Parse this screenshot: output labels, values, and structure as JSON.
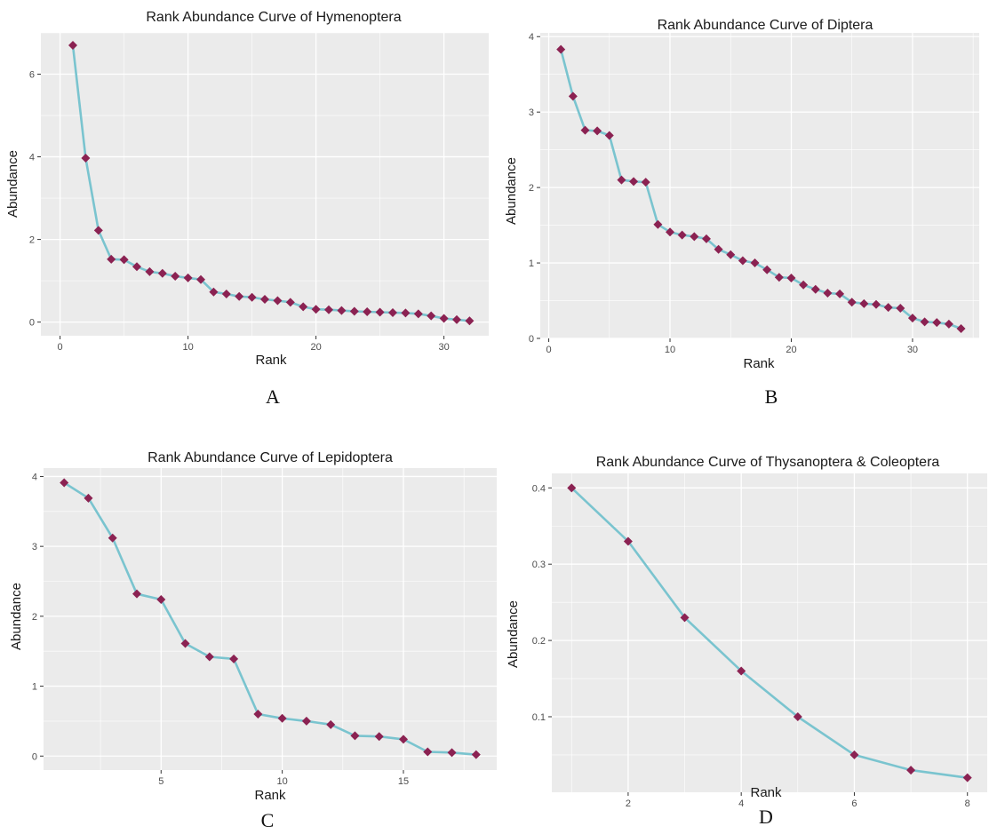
{
  "chart_data": [
    {
      "id": "A",
      "panel_label": "A",
      "type": "line",
      "title": "Rank Abundance Curve of Hymenoptera",
      "xlabel": "Rank",
      "ylabel": "Abundance",
      "xlim": [
        -1.5,
        33.5
      ],
      "ylim": [
        -0.33,
        7.0
      ],
      "xticks": [
        0,
        10,
        20,
        30
      ],
      "yticks": [
        0,
        2,
        4,
        6
      ],
      "grid": true,
      "line_color": "#7ac4cf",
      "marker_color": "#8b2252",
      "marker": "diamond",
      "x": [
        1,
        2,
        3,
        4,
        5,
        6,
        7,
        8,
        9,
        10,
        11,
        12,
        13,
        14,
        15,
        16,
        17,
        18,
        19,
        20,
        21,
        22,
        23,
        24,
        25,
        26,
        27,
        28,
        29,
        30,
        31,
        32
      ],
      "y": [
        6.7,
        3.97,
        2.22,
        1.52,
        1.51,
        1.34,
        1.22,
        1.18,
        1.11,
        1.07,
        1.03,
        0.73,
        0.68,
        0.62,
        0.6,
        0.55,
        0.52,
        0.48,
        0.37,
        0.31,
        0.3,
        0.28,
        0.26,
        0.25,
        0.24,
        0.23,
        0.22,
        0.2,
        0.15,
        0.09,
        0.06,
        0.03
      ]
    },
    {
      "id": "B",
      "panel_label": "B",
      "type": "line",
      "title": "Rank Abundance Curve of Diptera",
      "xlabel": "Rank",
      "ylabel": "Abundance",
      "xlim": [
        -0.7,
        35.5
      ],
      "ylim": [
        0,
        4.05
      ],
      "xticks": [
        0,
        10,
        20,
        30
      ],
      "yticks": [
        0,
        1,
        2,
        3,
        4
      ],
      "grid": true,
      "line_color": "#7ac4cf",
      "marker_color": "#8b2252",
      "marker": "diamond",
      "x": [
        1,
        2,
        3,
        4,
        5,
        6,
        7,
        8,
        9,
        10,
        11,
        12,
        13,
        14,
        15,
        16,
        17,
        18,
        19,
        20,
        21,
        22,
        23,
        24,
        25,
        26,
        27,
        28,
        29,
        30,
        31,
        32,
        33,
        34
      ],
      "y": [
        3.83,
        3.21,
        2.76,
        2.75,
        2.69,
        2.1,
        2.08,
        2.07,
        1.51,
        1.41,
        1.37,
        1.35,
        1.32,
        1.18,
        1.11,
        1.03,
        1.0,
        0.91,
        0.81,
        0.8,
        0.71,
        0.65,
        0.6,
        0.59,
        0.48,
        0.46,
        0.45,
        0.41,
        0.4,
        0.27,
        0.22,
        0.21,
        0.19,
        0.13
      ]
    },
    {
      "id": "C",
      "panel_label": "C",
      "type": "line",
      "title": "Rank Abundance Curve of Lepidoptera",
      "xlabel": "Rank",
      "ylabel": "Abundance",
      "xlim": [
        0.15,
        18.85
      ],
      "ylim": [
        -0.2,
        4.12
      ],
      "xticks": [
        5,
        10,
        15
      ],
      "yticks": [
        0,
        1,
        2,
        3,
        4
      ],
      "grid": true,
      "line_color": "#7ac4cf",
      "marker_color": "#8b2252",
      "marker": "diamond",
      "x": [
        1,
        2,
        3,
        4,
        5,
        6,
        7,
        8,
        9,
        10,
        11,
        12,
        13,
        14,
        15,
        16,
        17,
        18
      ],
      "y": [
        3.91,
        3.69,
        3.12,
        2.32,
        2.24,
        1.61,
        1.42,
        1.39,
        0.6,
        0.54,
        0.5,
        0.45,
        0.29,
        0.28,
        0.24,
        0.06,
        0.05,
        0.02
      ]
    },
    {
      "id": "D",
      "panel_label": "D",
      "type": "line",
      "title": "Rank Abundance Curve of Thysanoptera & Coleoptera",
      "xlabel": "Rank",
      "ylabel": "Abundance",
      "xlim": [
        0.65,
        8.35
      ],
      "ylim": [
        0.001,
        0.419
      ],
      "xticks": [
        2,
        4,
        6,
        8
      ],
      "yticks": [
        0.1,
        0.2,
        0.3,
        0.4
      ],
      "grid": true,
      "line_color": "#7ac4cf",
      "marker_color": "#8b2252",
      "marker": "diamond",
      "x": [
        1,
        2,
        3,
        4,
        5,
        6,
        7,
        8
      ],
      "y": [
        0.4,
        0.33,
        0.23,
        0.16,
        0.1,
        0.05,
        0.03,
        0.02
      ]
    }
  ]
}
